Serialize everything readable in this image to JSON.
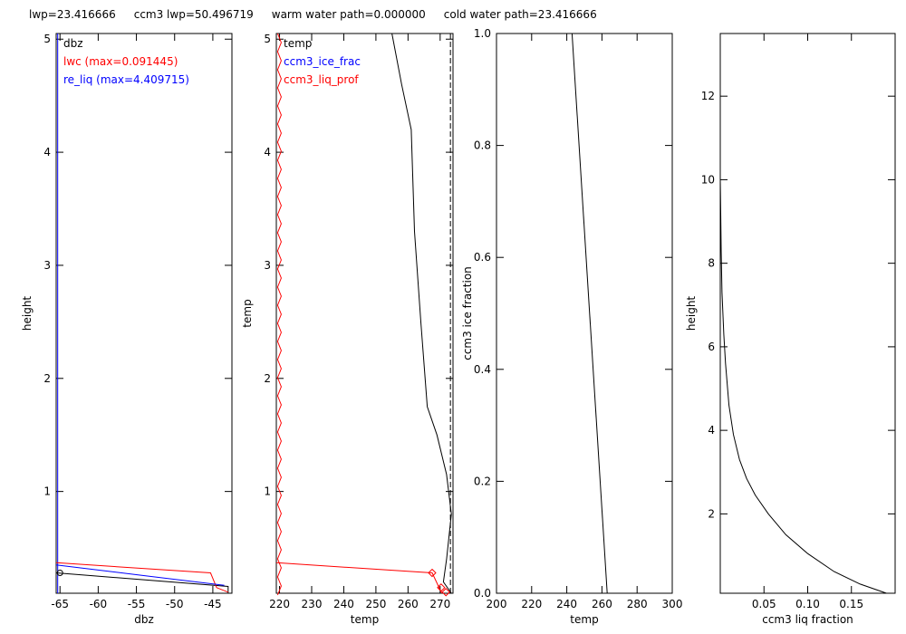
{
  "header": {
    "lwp": "lwp=23.416666",
    "ccm3_lwp": "ccm3 lwp=50.496719",
    "warm": "warm water path=0.000000",
    "cold": "cold water path=23.416666"
  },
  "colors": {
    "axis": "#000000",
    "red": "#ff0000",
    "blue": "#0000ff"
  },
  "chart_data": [
    {
      "type": "line",
      "xlabel": "dbz",
      "ylabel": "height",
      "xlim": [
        -65.5,
        -42.5
      ],
      "ylim": [
        0.1,
        5.05
      ],
      "xticks": [
        -65,
        -60,
        -55,
        -50,
        -45
      ],
      "yticks": [
        1,
        2,
        3,
        4,
        5
      ],
      "legend": [
        {
          "text": "dbz",
          "color": "#000000"
        },
        {
          "text": "lwc (max=0.091445)",
          "color": "#ff0000"
        },
        {
          "text": "re_liq (max=4.409715)",
          "color": "#0000ff"
        }
      ],
      "series": [
        {
          "color": "#000000",
          "x": [
            -65.5,
            -43,
            -43
          ],
          "y": [
            0.28,
            0.16,
            0.1
          ]
        },
        {
          "color": "#ff0000",
          "x": [
            -65.5,
            -45.3,
            -44.5,
            -43
          ],
          "y": [
            0.37,
            0.28,
            0.15,
            0.11
          ]
        },
        {
          "color": "#0000ff",
          "x": [
            -65.5,
            -43.5
          ],
          "y": [
            0.35,
            0.17
          ]
        }
      ],
      "vline": {
        "color": "#0000ff",
        "x": -65.3
      },
      "markers": [
        {
          "x": -65,
          "y": 0.28,
          "shape": "circle",
          "color": "#000000"
        }
      ]
    },
    {
      "type": "line",
      "xlabel": "temp",
      "ylabel": "temp",
      "xlim": [
        219,
        274
      ],
      "ylim": [
        0.1,
        5.05
      ],
      "xticks": [
        220,
        230,
        240,
        250,
        260,
        270
      ],
      "yticks": [
        1,
        2,
        3,
        4,
        5
      ],
      "legend": [
        {
          "text": "temp",
          "color": "#000000"
        },
        {
          "text": "ccm3_ice_frac",
          "color": "#0000ff"
        },
        {
          "text": "ccm3_liq_prof",
          "color": "#ff0000"
        }
      ],
      "series": [
        {
          "color": "#000000",
          "x": [
            255,
            258,
            261,
            262,
            264,
            266,
            269,
            272,
            273.5,
            272,
            271,
            273.5
          ],
          "y": [
            5.05,
            4.6,
            4.2,
            3.3,
            2.5,
            1.75,
            1.5,
            1.15,
            0.8,
            0.4,
            0.2,
            0.1
          ]
        },
        {
          "color": "#ff0000",
          "x": [
            219,
            267.5,
            270.5
          ],
          "y": [
            0.37,
            0.28,
            0.1
          ]
        }
      ],
      "vline": {
        "color": "#ff0000",
        "x": 219.4,
        "zigzag": true
      },
      "dash_vline": {
        "color": "#000000",
        "x": 273.2
      },
      "markers": [
        {
          "x": 267.5,
          "y": 0.28,
          "shape": "diamond",
          "color": "#ff0000"
        },
        {
          "x": 270.3,
          "y": 0.15,
          "shape": "diamond",
          "color": "#ff0000"
        },
        {
          "x": 271.8,
          "y": 0.11,
          "shape": "diamond",
          "color": "#ff0000"
        }
      ]
    },
    {
      "type": "line",
      "xlabel": "temp",
      "ylabel": "ccm3 ice fraction",
      "xlim": [
        200,
        300
      ],
      "ylim": [
        0,
        1
      ],
      "xticks": [
        200,
        220,
        240,
        260,
        280,
        300
      ],
      "yticks": [
        "0.0",
        "0.2",
        "0.4",
        "0.6",
        "0.8",
        "1.0"
      ],
      "legend": [],
      "series": [
        {
          "color": "#000000",
          "x": [
            243,
            263
          ],
          "y": [
            1.0,
            0.0
          ]
        }
      ]
    },
    {
      "type": "line",
      "xlabel": "ccm3 liq fraction",
      "ylabel": "height",
      "xlim": [
        0,
        0.2
      ],
      "ylim": [
        0.1,
        13.5
      ],
      "xticks": [
        "0.05",
        "0.10",
        "0.15"
      ],
      "yticks": [
        2,
        4,
        6,
        8,
        10,
        12
      ],
      "legend": [],
      "series": [
        {
          "color": "#000000",
          "x": [
            0.0,
            0.0005,
            0.001,
            0.002,
            0.004,
            0.006,
            0.01,
            0.015,
            0.022,
            0.03,
            0.04,
            0.055,
            0.075,
            0.1,
            0.13,
            0.16,
            0.19
          ],
          "y": [
            10,
            9.2,
            8.3,
            7.3,
            6.3,
            5.6,
            4.6,
            3.9,
            3.3,
            2.85,
            2.45,
            2.0,
            1.5,
            1.05,
            0.62,
            0.32,
            0.1
          ]
        }
      ]
    }
  ]
}
